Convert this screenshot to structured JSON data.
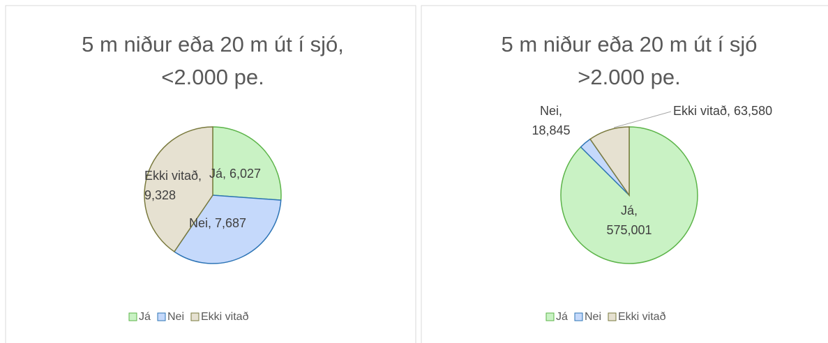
{
  "chart_data": [
    {
      "type": "pie",
      "title": "5 m niður eða 20 m út í sjó,\n<2.000 pe.",
      "categories": [
        "Já",
        "Nei",
        "Ekki vitað"
      ],
      "values": [
        6027,
        7687,
        9328
      ],
      "value_labels": [
        "Já, 6,027",
        "Nei, 7,687",
        "Ekki vitað,\n9,328"
      ],
      "colors": [
        "#c9f2c4",
        "#c5d9fb",
        "#e6e1d1"
      ],
      "legend": "bottom"
    },
    {
      "type": "pie",
      "title": "5 m niður eða 20 m út í sjó\n>2.000 pe.",
      "categories": [
        "Já",
        "Nei",
        "Ekki vitað"
      ],
      "values": [
        575001,
        18845,
        63580
      ],
      "value_labels": [
        "Já,\n575,001",
        "Nei,\n18,845",
        "Ekki vitað, 63,580"
      ],
      "colors": [
        "#c9f2c4",
        "#c5d9fb",
        "#e6e1d1"
      ],
      "legend": "bottom"
    }
  ]
}
